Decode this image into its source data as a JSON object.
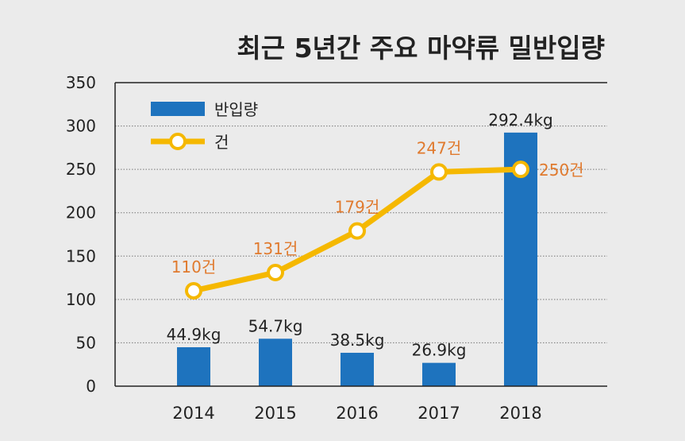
{
  "chart_data": {
    "type": "bar",
    "title": "최근 5년간 주요 마약류 밀반입량",
    "categories": [
      "2014",
      "2015",
      "2016",
      "2017",
      "2018"
    ],
    "ylim": [
      0,
      350
    ],
    "yticks": [
      0,
      50,
      100,
      150,
      200,
      250,
      300,
      350
    ],
    "grid": true,
    "legend_position": "top-left",
    "series": [
      {
        "name": "반입량",
        "type": "bar",
        "color": "#1e73be",
        "values": [
          44.9,
          54.7,
          38.5,
          26.9,
          292.4
        ],
        "labels": [
          "44.9kg",
          "54.7kg",
          "38.5kg",
          "26.9kg",
          "292.4kg"
        ]
      },
      {
        "name": "건",
        "type": "line",
        "color": "#f5b800",
        "values": [
          110,
          131,
          179,
          247,
          250
        ],
        "labels": [
          "110건",
          "131건",
          "179건",
          "247건",
          "250건"
        ]
      }
    ],
    "highlight_category": "2018",
    "highlight_color": "#c8102e",
    "line_label_color": "#e07a2e"
  }
}
